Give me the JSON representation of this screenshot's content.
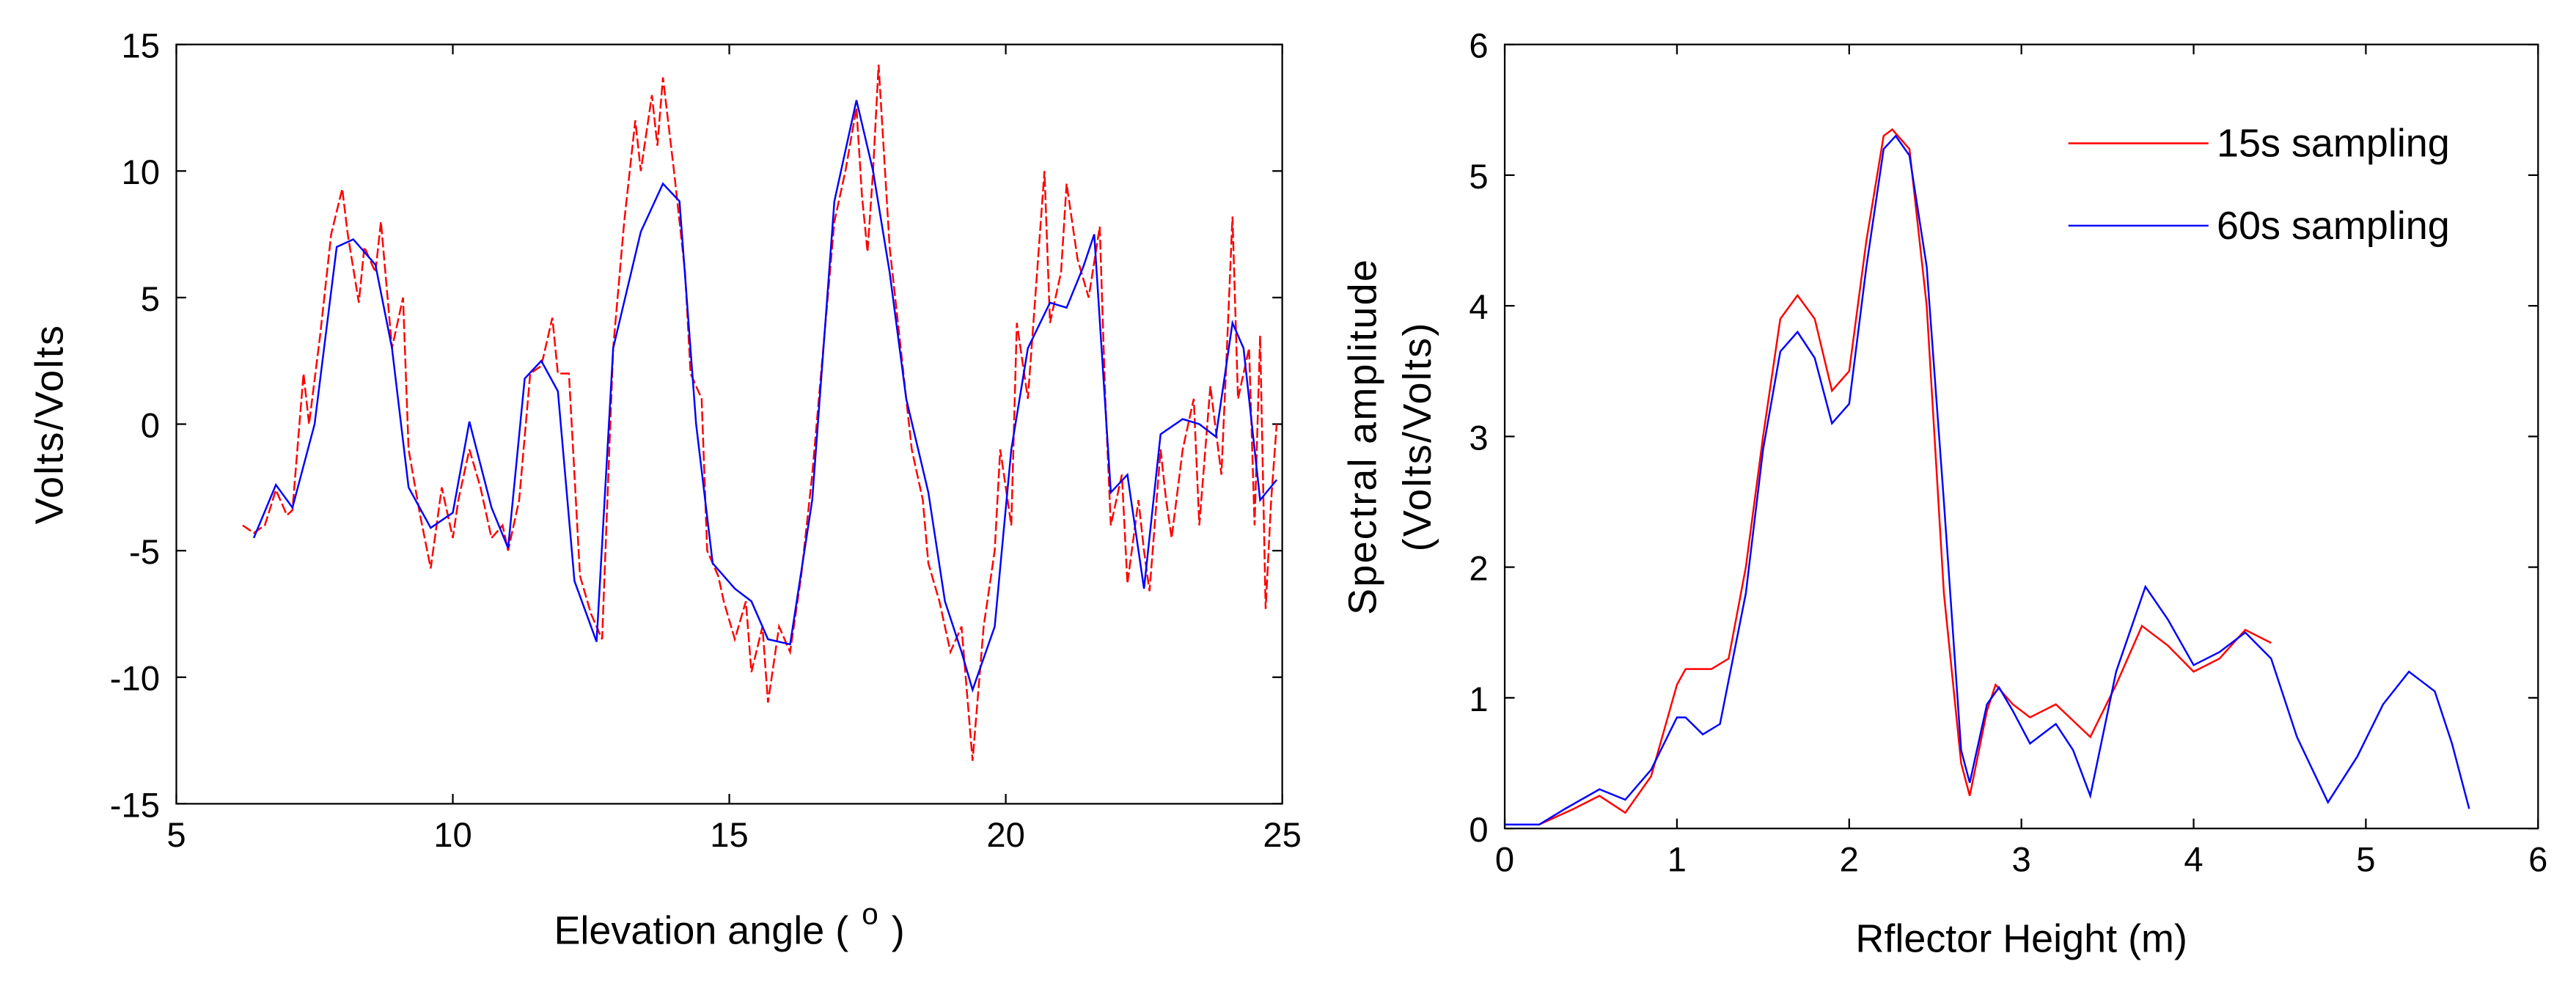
{
  "chart_data": [
    {
      "type": "line",
      "xlabel": "Elevation angle (",
      "xlabel_sup": "o",
      "xlabel_end": ")",
      "ylabel": "Volts/Volts",
      "xlim": [
        5,
        25
      ],
      "xticks": [
        5,
        10,
        15,
        20,
        25
      ],
      "ylim": [
        -15,
        15
      ],
      "yticks": [
        -15,
        -10,
        -5,
        0,
        5,
        10,
        15
      ],
      "series": [
        {
          "color": "#ff0000",
          "dashed": true,
          "x": [
            6.2,
            6.4,
            6.6,
            6.8,
            7,
            7.1,
            7.3,
            7.4,
            7.6,
            7.8,
            8,
            8.1,
            8.3,
            8.4,
            8.6,
            8.7,
            8.9,
            9.1,
            9.2,
            9.4,
            9.6,
            9.8,
            10,
            10.1,
            10.3,
            10.5,
            10.7,
            10.9,
            11,
            11.2,
            11.4,
            11.6,
            11.8,
            11.9,
            12.1,
            12.3,
            12.5,
            12.7,
            12.9,
            13.1,
            13.3,
            13.4,
            13.6,
            13.7,
            13.8,
            14,
            14.2,
            14.3,
            14.5,
            14.6,
            14.8,
            14.9,
            15.1,
            15.3,
            15.4,
            15.6,
            15.7,
            15.9,
            16.1,
            16.3,
            16.5,
            16.7,
            16.9,
            17.1,
            17.3,
            17.4,
            17.5,
            17.6,
            17.7,
            17.9,
            18.1,
            18.3,
            18.5,
            18.6,
            18.8,
            19,
            19.2,
            19.4,
            19.6,
            19.8,
            19.9,
            20.1,
            20.2,
            20.4,
            20.6,
            20.7,
            20.8,
            21,
            21.1,
            21.3,
            21.5,
            21.7,
            21.8,
            21.9,
            22.1,
            22.2,
            22.4,
            22.5,
            22.6,
            22.8,
            22.9,
            23,
            23.2,
            23.4,
            23.5,
            23.7,
            23.9,
            24,
            24.1,
            24.2,
            24.4,
            24.5,
            24.6,
            24.7,
            24.8,
            24.9
          ],
          "values": [
            -4,
            -4.3,
            -4,
            -2.6,
            -3.6,
            -3.4,
            2,
            0,
            3.5,
            7.5,
            9.3,
            7.5,
            4.8,
            7,
            6,
            8,
            3,
            5,
            -1,
            -3.5,
            -5.7,
            -2.5,
            -4.5,
            -3,
            -1,
            -2.5,
            -4.5,
            -4,
            -5,
            -3,
            2,
            2.3,
            4.2,
            2,
            2,
            -6,
            -7.5,
            -8.5,
            3,
            8,
            12,
            10,
            13,
            11,
            13.7,
            10,
            6,
            2,
            1,
            -5,
            -6,
            -7,
            -8.5,
            -7,
            -9.8,
            -8,
            -11,
            -8,
            -9,
            -6,
            -2,
            3,
            8,
            10,
            12.5,
            9,
            6.8,
            10,
            14.2,
            7,
            3,
            -1,
            -3,
            -5.5,
            -7,
            -9,
            -8,
            -13.3,
            -8,
            -5,
            -1,
            -4,
            4,
            1,
            7,
            10,
            4,
            6,
            9.5,
            6.5,
            5,
            7.8,
            1,
            -4,
            -2,
            -6.3,
            -3,
            -5,
            -6.6,
            -1,
            -3,
            -4.5,
            -1,
            1,
            -4,
            1.5,
            -2,
            3,
            8.2,
            1,
            3,
            -4,
            3.5,
            -7.3,
            -3,
            0
          ]
        },
        {
          "color": "#0000ff",
          "dashed": false,
          "x": [
            6.4,
            6.8,
            7.1,
            7.5,
            7.9,
            8.2,
            8.6,
            8.9,
            9.2,
            9.6,
            10,
            10.3,
            10.7,
            11,
            11.3,
            11.6,
            11.9,
            12.2,
            12.6,
            12.9,
            13.4,
            13.8,
            14.1,
            14.4,
            14.7,
            15.1,
            15.4,
            15.7,
            16.1,
            16.5,
            16.9,
            17.3,
            17.6,
            17.9,
            18.2,
            18.6,
            18.9,
            19.2,
            19.4,
            19.8,
            20.1,
            20.4,
            20.8,
            21.1,
            21.4,
            21.6,
            21.9,
            22.2,
            22.5,
            22.8,
            23.2,
            23.5,
            23.8,
            24.1,
            24.3,
            24.6,
            24.9
          ],
          "values": [
            -4.5,
            -2.4,
            -3.3,
            0,
            7,
            7.3,
            6.3,
            3,
            -2.5,
            -4.1,
            -3.5,
            0.1,
            -3.3,
            -4.9,
            1.8,
            2.5,
            1.3,
            -6.2,
            -8.6,
            3,
            7.6,
            9.5,
            8.8,
            0,
            -5.5,
            -6.5,
            -7,
            -8.5,
            -8.7,
            -3,
            8.8,
            12.8,
            10,
            6,
            1,
            -2.7,
            -7,
            -9,
            -10.5,
            -8,
            -1,
            3,
            4.8,
            4.6,
            6.2,
            7.5,
            -2.7,
            -2,
            -6.5,
            -0.4,
            0.2,
            0,
            -0.5,
            4,
            3,
            -3,
            -2.2
          ]
        }
      ]
    },
    {
      "type": "line",
      "xlabel": "Rflector Height (m)",
      "ylabel": [
        "Spectral amplitude",
        "(Volts/Volts)"
      ],
      "xlim": [
        0,
        6
      ],
      "xticks": [
        0,
        1,
        2,
        3,
        4,
        5,
        6
      ],
      "ylim": [
        0,
        6
      ],
      "yticks": [
        0,
        1,
        2,
        3,
        4,
        5,
        6
      ],
      "legend": "upper right",
      "series": [
        {
          "name": "15s sampling",
          "color": "#ff0000",
          "dashed": false,
          "x": [
            0.2,
            0.4,
            0.55,
            0.7,
            0.85,
            1,
            1.05,
            1.2,
            1.3,
            1.4,
            1.5,
            1.6,
            1.7,
            1.8,
            1.9,
            2.0,
            2.1,
            2.2,
            2.25,
            2.35,
            2.45,
            2.55,
            2.65,
            2.7,
            2.8,
            2.85,
            2.95,
            3.05,
            3.2,
            3.4,
            3.55,
            3.7,
            3.85,
            4,
            4.15,
            4.3,
            4.45
          ],
          "values": [
            0.03,
            0.15,
            0.25,
            0.12,
            0.4,
            1.1,
            1.22,
            1.22,
            1.3,
            2,
            3,
            3.9,
            4.08,
            3.9,
            3.35,
            3.5,
            4.5,
            5.3,
            5.35,
            5.2,
            4,
            1.8,
            0.5,
            0.25,
            0.9,
            1.1,
            0.95,
            0.85,
            0.95,
            0.7,
            1.1,
            1.55,
            1.4,
            1.2,
            1.3,
            1.52,
            1.42
          ]
        },
        {
          "name": "60s sampling",
          "color": "#0000ff",
          "dashed": false,
          "x": [
            0,
            0.2,
            0.35,
            0.55,
            0.7,
            0.85,
            1,
            1.05,
            1.15,
            1.25,
            1.4,
            1.5,
            1.6,
            1.7,
            1.8,
            1.9,
            2.0,
            2.1,
            2.2,
            2.27,
            2.35,
            2.45,
            2.55,
            2.65,
            2.7,
            2.8,
            2.87,
            2.95,
            3.05,
            3.2,
            3.3,
            3.4,
            3.55,
            3.72,
            3.85,
            4,
            4.15,
            4.3,
            4.45,
            4.6,
            4.78,
            4.95,
            5.1,
            5.25,
            5.4,
            5.5,
            5.6
          ],
          "values": [
            0.03,
            0.03,
            0.15,
            0.3,
            0.22,
            0.45,
            0.85,
            0.85,
            0.72,
            0.8,
            1.8,
            2.9,
            3.65,
            3.8,
            3.6,
            3.1,
            3.25,
            4.3,
            5.2,
            5.3,
            5.15,
            4.3,
            2.5,
            0.6,
            0.35,
            0.95,
            1.08,
            0.9,
            0.65,
            0.8,
            0.6,
            0.25,
            1.2,
            1.85,
            1.6,
            1.25,
            1.35,
            1.5,
            1.3,
            0.7,
            0.2,
            0.55,
            0.95,
            1.2,
            1.05,
            0.65,
            0.15
          ]
        }
      ]
    }
  ]
}
